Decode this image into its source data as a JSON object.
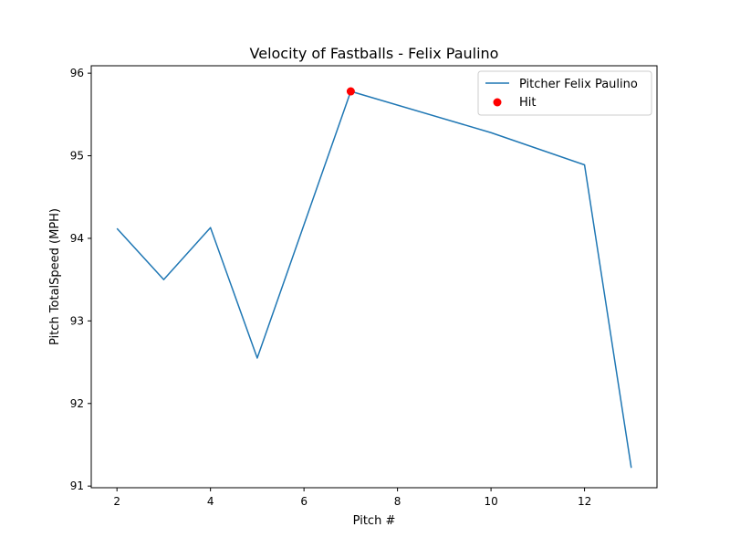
{
  "chart_data": {
    "type": "line",
    "title": "Velocity of Fastballs - Felix Paulino",
    "xlabel": "Pitch #",
    "ylabel": "Pitch TotalSpeed (MPH)",
    "xlim": [
      1.45,
      13.55
    ],
    "ylim": [
      90.98,
      96.09
    ],
    "xticks": [
      2,
      4,
      6,
      8,
      10,
      12
    ],
    "yticks": [
      91,
      92,
      93,
      94,
      95,
      96
    ],
    "grid": false,
    "legend_position": "top-right",
    "series": [
      {
        "name": "Pitcher Felix Paulino",
        "kind": "line",
        "color": "#1f77b4",
        "x": [
          2,
          3,
          4,
          5,
          7,
          10,
          12,
          13
        ],
        "y": [
          94.12,
          93.5,
          94.13,
          92.55,
          95.78,
          95.28,
          94.89,
          91.22
        ]
      },
      {
        "name": "Hit",
        "kind": "scatter",
        "color": "#ff0000",
        "x": [
          7
        ],
        "y": [
          95.78
        ]
      }
    ]
  }
}
